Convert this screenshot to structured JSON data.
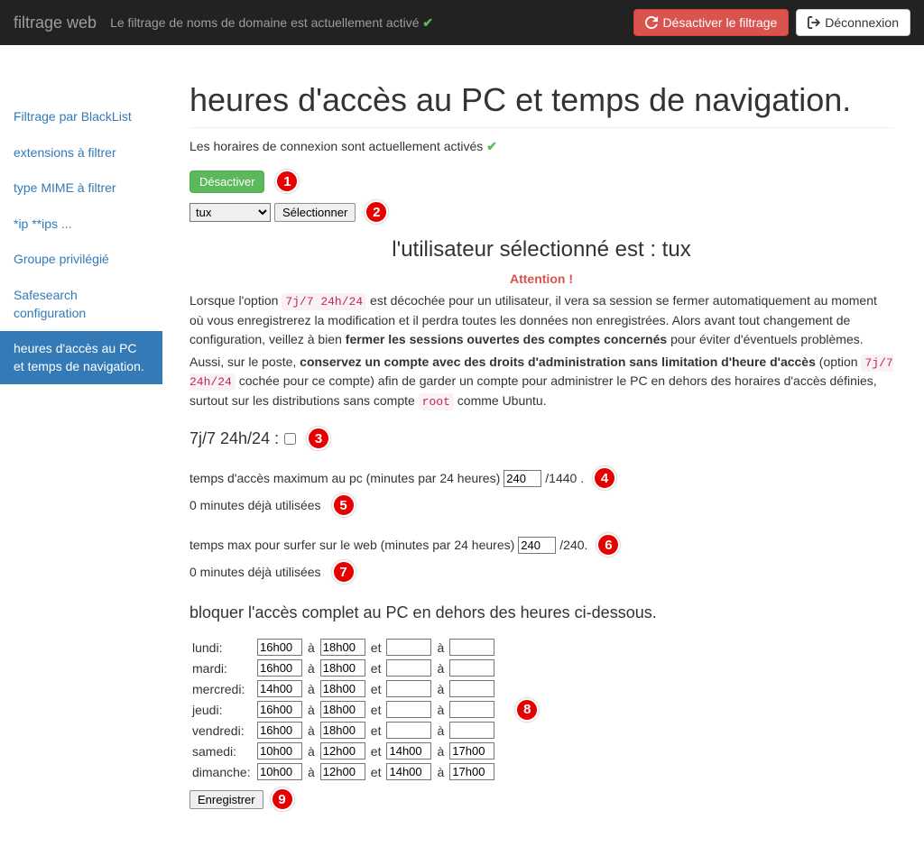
{
  "navbar": {
    "brand": "filtrage web",
    "status_text": "Le filtrage de noms de domaine est actuellement activé",
    "disable_btn": "Désactiver le filtrage",
    "logout_btn": "Déconnexion"
  },
  "sidebar": {
    "items": [
      {
        "label": "Filtrage par BlackList",
        "active": false
      },
      {
        "label": "extensions à filtrer",
        "active": false
      },
      {
        "label": "type MIME à filtrer",
        "active": false
      },
      {
        "label": "*ip **ips ...",
        "active": false
      },
      {
        "label": "Groupe privilégié",
        "active": false
      },
      {
        "label": "Safesearch configuration",
        "active": false
      },
      {
        "label": "heures d'accès au PC et temps de navigation.",
        "active": true
      }
    ]
  },
  "page": {
    "title": "heures d'accès au PC et temps de navigation.",
    "hours_status": "Les horaires de connexion sont actuellement activés",
    "deactivate_btn": "Désactiver",
    "user_select_value": "tux",
    "select_btn": "Sélectionner",
    "selected_user_heading": "l'utilisateur sélectionné est : tux",
    "attention_label": "Attention !",
    "warn_p1_a": "Lorsque l'option ",
    "warn_code1": "7j/7 24h/24",
    "warn_p1_b": " est décochée pour un utilisateur, il vera sa session se fermer automatiquement au moment où vous enregistrerez la modification et il perdra toutes les données non enregistrées. Alors avant tout changement de configuration, veillez à bien ",
    "warn_bold1": "fermer les sessions ouvertes des comptes concernés",
    "warn_p1_c": " pour éviter d'éventuels problèmes.",
    "warn_p2_a": "Aussi, sur le poste, ",
    "warn_bold2": "conservez un compte avec des droits d'administration sans limitation d'heure d'accès",
    "warn_p2_b": " (option ",
    "warn_code2": "7j/7 24h/24",
    "warn_p2_c": " cochée pour ce compte) afin de garder un compte pour administrer le PC en dehors des horaires d'accès définies, surtout sur les distributions sans compte ",
    "warn_code3": "root",
    "warn_p2_d": " comme Ubuntu.",
    "allday_label": "7j/7 24h/24 :",
    "allday_checked": false,
    "pc_time_label": "temps d'accès maximum au pc (minutes par 24 heures)",
    "pc_time_value": "240",
    "pc_time_suffix": "/1440 .",
    "pc_used_label": "0 minutes déjà utilisées",
    "web_time_label": "temps max pour surfer sur le web (minutes par 24 heures)",
    "web_time_value": "240",
    "web_time_suffix": "/240.",
    "web_used_label": "0 minutes déjà utilisées",
    "block_heading": "bloquer l'accès complet au PC en dehors des heures ci-dessous.",
    "sep_a": "à",
    "sep_et": "et",
    "schedule": [
      {
        "day": "lundi:",
        "s1": "16h00",
        "e1": "18h00",
        "s2": "",
        "e2": ""
      },
      {
        "day": "mardi:",
        "s1": "16h00",
        "e1": "18h00",
        "s2": "",
        "e2": ""
      },
      {
        "day": "mercredi:",
        "s1": "14h00",
        "e1": "18h00",
        "s2": "",
        "e2": ""
      },
      {
        "day": "jeudi:",
        "s1": "16h00",
        "e1": "18h00",
        "s2": "",
        "e2": ""
      },
      {
        "day": "vendredi:",
        "s1": "16h00",
        "e1": "18h00",
        "s2": "",
        "e2": ""
      },
      {
        "day": "samedi:",
        "s1": "10h00",
        "e1": "12h00",
        "s2": "14h00",
        "e2": "17h00"
      },
      {
        "day": "dimanche:",
        "s1": "10h00",
        "e1": "12h00",
        "s2": "14h00",
        "e2": "17h00"
      }
    ],
    "save_btn": "Enregistrer"
  },
  "annotations": [
    "1",
    "2",
    "3",
    "4",
    "5",
    "6",
    "7",
    "8",
    "9"
  ],
  "colors": {
    "navbar_bg": "#222222",
    "link": "#337ab7",
    "danger": "#d9534f",
    "success": "#5cb85c",
    "badge": "#e60000"
  }
}
